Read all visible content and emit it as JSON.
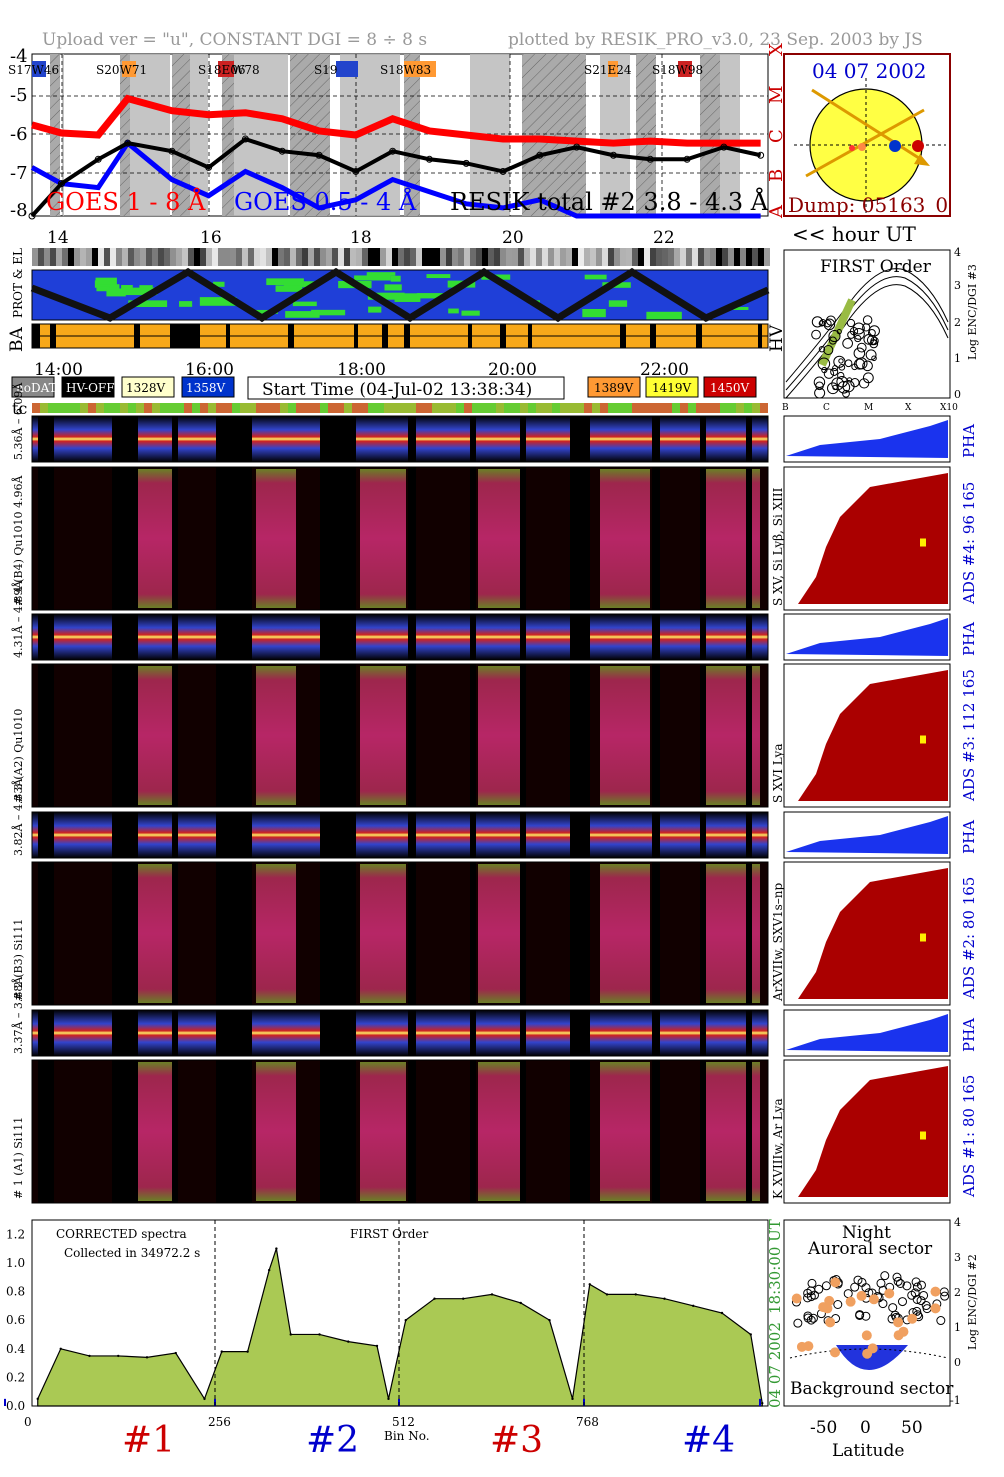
{
  "header": {
    "upload_text": "Upload ver = \"u\", CONSTANT  DGI =   8 ÷   8 s",
    "plotted_text": "plotted by RESIK_PRO_v3.0, 23 Sep. 2003 by JS"
  },
  "goes_panel": {
    "y_ticks": [
      "-4",
      "-5",
      "-6",
      "-7",
      "-8"
    ],
    "class_labels": [
      "X",
      "M",
      "C",
      "B",
      "A"
    ],
    "active_regions": [
      "S17W46",
      "S20W71",
      "S18E06",
      "W78",
      "S19",
      "S18W83",
      "S21E24",
      "S18W98"
    ],
    "legend_goes_1_8": "GOES 1 - 8 Å",
    "legend_goes_05_4": "GOES 0.5 - 4 Å",
    "legend_resik": "RESIK total #2  3.8 - 4.3 Å",
    "colors": {
      "goes_long": "#ff0000",
      "goes_short": "#0000ff",
      "resik": "#000000",
      "flare_bg": "#aaaaaa"
    }
  },
  "sun_panel": {
    "date": "04 07 2002",
    "dump": "Dump: 05163_0",
    "colors": {
      "disk": "#ffff33",
      "border": "#8b0000",
      "text": "#0000cc",
      "orbit": "#dd9900"
    }
  },
  "orbit_panels": {
    "hour_ticks": [
      "14",
      "16",
      "18",
      "20",
      "22"
    ],
    "hour_label": "<< hour UT",
    "row_labels": [
      "PROT & EL",
      "BA",
      "HV"
    ]
  },
  "hv_legend": {
    "time_ticks": [
      "14:00",
      "16:00",
      "18:00",
      "20:00",
      "22:00"
    ],
    "boxes_left": [
      {
        "label": "noDATA",
        "bg": "#888888",
        "fg": "#ffffff"
      },
      {
        "label": "HV-OFF",
        "bg": "#000000",
        "fg": "#ffffff"
      },
      {
        "label": "1328V",
        "bg": "#ffffcc",
        "fg": "#000000"
      },
      {
        "label": "1358V",
        "bg": "#0033cc",
        "fg": "#ffffff"
      }
    ],
    "start_time": "Start Time (04-Jul-02 13:38:34)",
    "boxes_right": [
      {
        "label": "1389V",
        "bg": "#ff9933",
        "fg": "#000000"
      },
      {
        "label": "1419V",
        "bg": "#ffff33",
        "fg": "#000000"
      },
      {
        "label": "1450V",
        "bg": "#cc0000",
        "fg": "#ffffff"
      }
    ],
    "tc_label": "tc"
  },
  "first_order_panel": {
    "title": "FIRST Order",
    "y_label": "Log ENC/DGI #3",
    "y_ticks": [
      "4",
      "3",
      "2",
      "1",
      "0"
    ],
    "x_ticks": [
      "B",
      "C",
      "M",
      "X",
      "X10"
    ]
  },
  "channels": [
    {
      "id": 4,
      "wave_label": "5.36Å – 6.09Å",
      "crystal_label": "# 4 (B4) Qu1010 4.96Å",
      "lines_label": "S XV, Si Lyβ, Si XIII",
      "ads_label": "ADS #4:   96 165",
      "pha_label": "PHA"
    },
    {
      "id": 3,
      "wave_label": "4.31Å – 4.89Å",
      "crystal_label": "# 3 (A2) Qu1010",
      "lines_label": "S XVI Lya",
      "ads_label": "ADS #3:   112 165",
      "pha_label": "PHA"
    },
    {
      "id": 2,
      "wave_label": "3.82Å – 4.33Å",
      "crystal_label": "# 2 (B3) Si111",
      "lines_label": "ArXVIIw, SXV1s–np",
      "ads_label": "ADS #2:   80 165",
      "pha_label": "PHA"
    },
    {
      "id": 1,
      "wave_label": "3.37Å – 3.88Å",
      "crystal_label": "# 1 (A1) Si111",
      "lines_label": "K XVIIIw, Ar Lya",
      "ads_label": "ADS #1:   80 165",
      "pha_label": "PHA"
    }
  ],
  "spectrum_panel": {
    "label_corrected": "CORRECTED spectra",
    "label_collected": "Collected in 34972.2 s",
    "label_first_order": "FIRST Order",
    "right_label_time": "18:30:00 UT",
    "right_label_date": "04 07 2002",
    "x_label": "Bin No.",
    "section_labels": [
      {
        "text": "#1",
        "color": "#cc0000"
      },
      {
        "text": "#2",
        "color": "#0000cc"
      },
      {
        "text": "#3",
        "color": "#cc0000"
      },
      {
        "text": "#4",
        "color": "#0000cc"
      }
    ]
  },
  "night_panel": {
    "title_line1": "Night",
    "title_line2": "Auroral sector",
    "bottom_label": "Background sector",
    "x_label": "Latitude",
    "x_ticks": [
      "-50",
      "0",
      "50"
    ],
    "y_label": "Log ENC/DGI #2",
    "y_ticks": [
      "4",
      "3",
      "2",
      "1",
      "0",
      "-1"
    ]
  },
  "chart_data": [
    {
      "type": "line",
      "title": "",
      "ylabel": "",
      "ylim": [
        -8,
        -4
      ],
      "x": [
        13.6,
        14.0,
        14.5,
        14.9,
        15.5,
        16.0,
        16.5,
        17.0,
        17.5,
        18.0,
        18.5,
        19.0,
        19.5,
        20.0,
        20.5,
        21.0,
        21.5,
        22.0,
        22.5,
        23.0,
        23.5
      ],
      "xlim": [
        13.6,
        23.6
      ],
      "series": [
        {
          "name": "GOES 1 - 8 Å",
          "values": [
            -5.75,
            -5.95,
            -6.0,
            -5.1,
            -5.4,
            -5.5,
            -5.45,
            -5.6,
            -5.9,
            -6.0,
            -5.6,
            -5.9,
            -6.0,
            -6.1,
            -6.1,
            -6.15,
            -6.2,
            -6.15,
            -6.2,
            -6.2,
            -6.2
          ]
        },
        {
          "name": "GOES 0.5 - 4 Å",
          "values": [
            -6.8,
            -7.2,
            -7.3,
            -6.2,
            -7.1,
            -7.5,
            -6.9,
            -7.3,
            -7.8,
            -7.6,
            -7.1,
            -7.4,
            -7.7,
            -7.8,
            -7.6,
            -8.0,
            -8.0,
            -8.0,
            -8.0,
            -8.0,
            -8.0
          ]
        },
        {
          "name": "RESIK total #2  3.8 - 4.3 Å",
          "values": [
            -8.0,
            -7.2,
            -6.6,
            -6.2,
            -6.4,
            -6.8,
            -6.1,
            -6.4,
            -6.5,
            -6.9,
            -6.4,
            -6.6,
            -6.7,
            -6.9,
            -6.5,
            -6.3,
            -6.5,
            -6.6,
            -6.6,
            -6.3,
            -6.5
          ]
        }
      ]
    },
    {
      "type": "area",
      "title": "",
      "xlabel": "Bin No.",
      "ylim": [
        0,
        1.3
      ],
      "y_ticks": [
        0.0,
        0.2,
        0.4,
        0.6,
        0.8,
        1.0,
        1.2
      ],
      "x_ticks": [
        0,
        256,
        512,
        768
      ],
      "xlim": [
        0,
        1024
      ],
      "x": [
        8,
        40,
        80,
        120,
        160,
        200,
        240,
        264,
        300,
        330,
        340,
        360,
        400,
        440,
        480,
        496,
        520,
        560,
        600,
        640,
        680,
        720,
        752,
        776,
        800,
        840,
        880,
        920,
        960,
        1000,
        1016
      ],
      "values": [
        0.05,
        0.4,
        0.35,
        0.35,
        0.34,
        0.37,
        0.05,
        0.38,
        0.38,
        0.95,
        1.1,
        0.5,
        0.5,
        0.45,
        0.42,
        0.05,
        0.6,
        0.75,
        0.75,
        0.78,
        0.72,
        0.6,
        0.05,
        0.85,
        0.78,
        0.78,
        0.75,
        0.7,
        0.65,
        0.5,
        0.02
      ]
    }
  ]
}
